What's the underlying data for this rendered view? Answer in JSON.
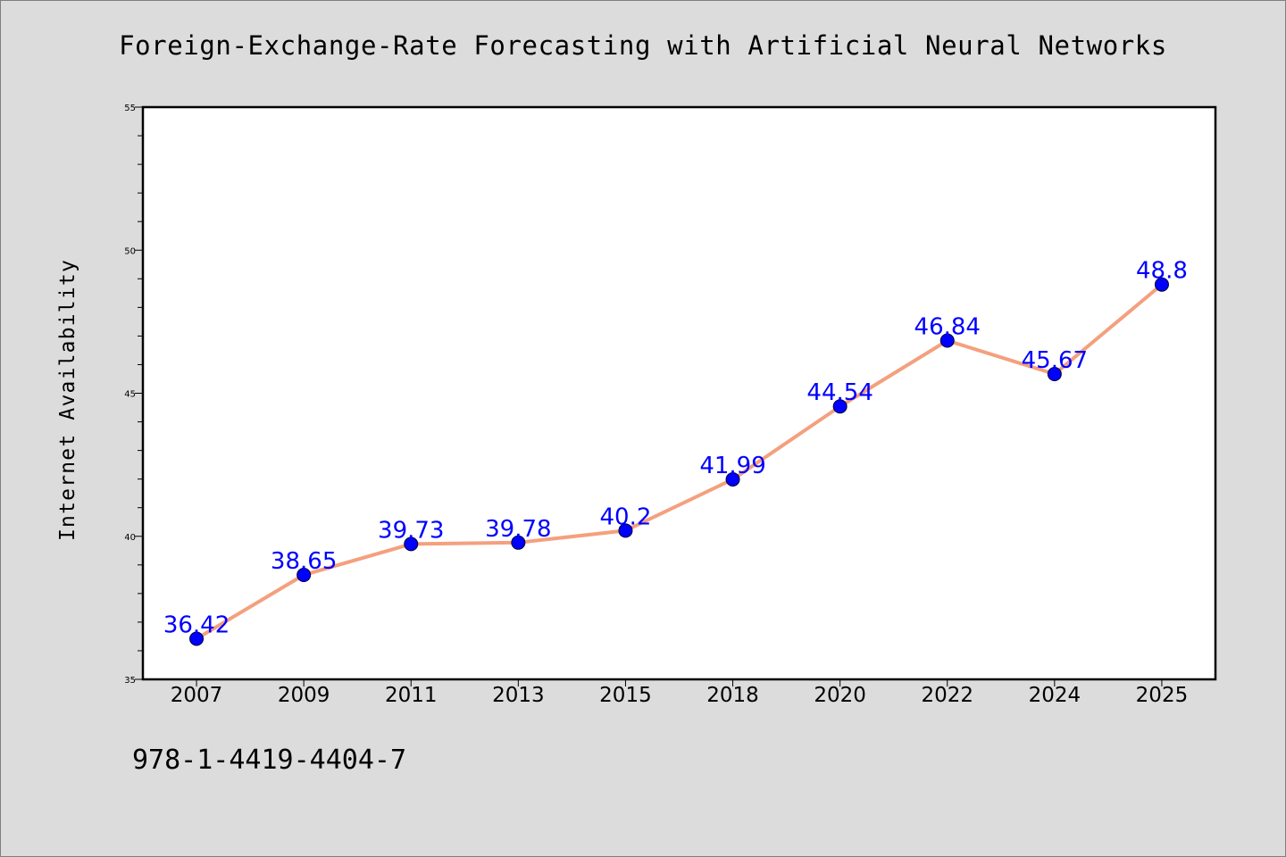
{
  "chart_data": {
    "type": "line",
    "title": "Foreign-Exchange-Rate Forecasting with Artificial Neural Networks",
    "xlabel": "",
    "ylabel": "Internet Availability",
    "categories": [
      "2007",
      "2009",
      "2011",
      "2013",
      "2015",
      "2018",
      "2020",
      "2022",
      "2024",
      "2025"
    ],
    "values": [
      36.42,
      38.65,
      39.73,
      39.78,
      40.2,
      41.99,
      44.54,
      46.84,
      45.67,
      48.8
    ],
    "data_labels": [
      "36.42",
      "38.65",
      "39.73",
      "39.78",
      "40.2",
      "41.99",
      "44.54",
      "46.84",
      "45.67",
      "48.8"
    ],
    "ylim": [
      35,
      55
    ],
    "yticks": [
      35,
      40,
      45,
      50,
      55
    ],
    "ytick_labels": [
      "35",
      "40",
      "45",
      "50",
      "55"
    ],
    "grid": false,
    "line_color": "#f4a07e",
    "marker_color": "#0000ff",
    "label_color": "#0000ff"
  },
  "footer": {
    "isbn": "978-1-4419-4404-7"
  },
  "colors": {
    "background": "#dcdcdc",
    "plot_background": "#ffffff"
  }
}
